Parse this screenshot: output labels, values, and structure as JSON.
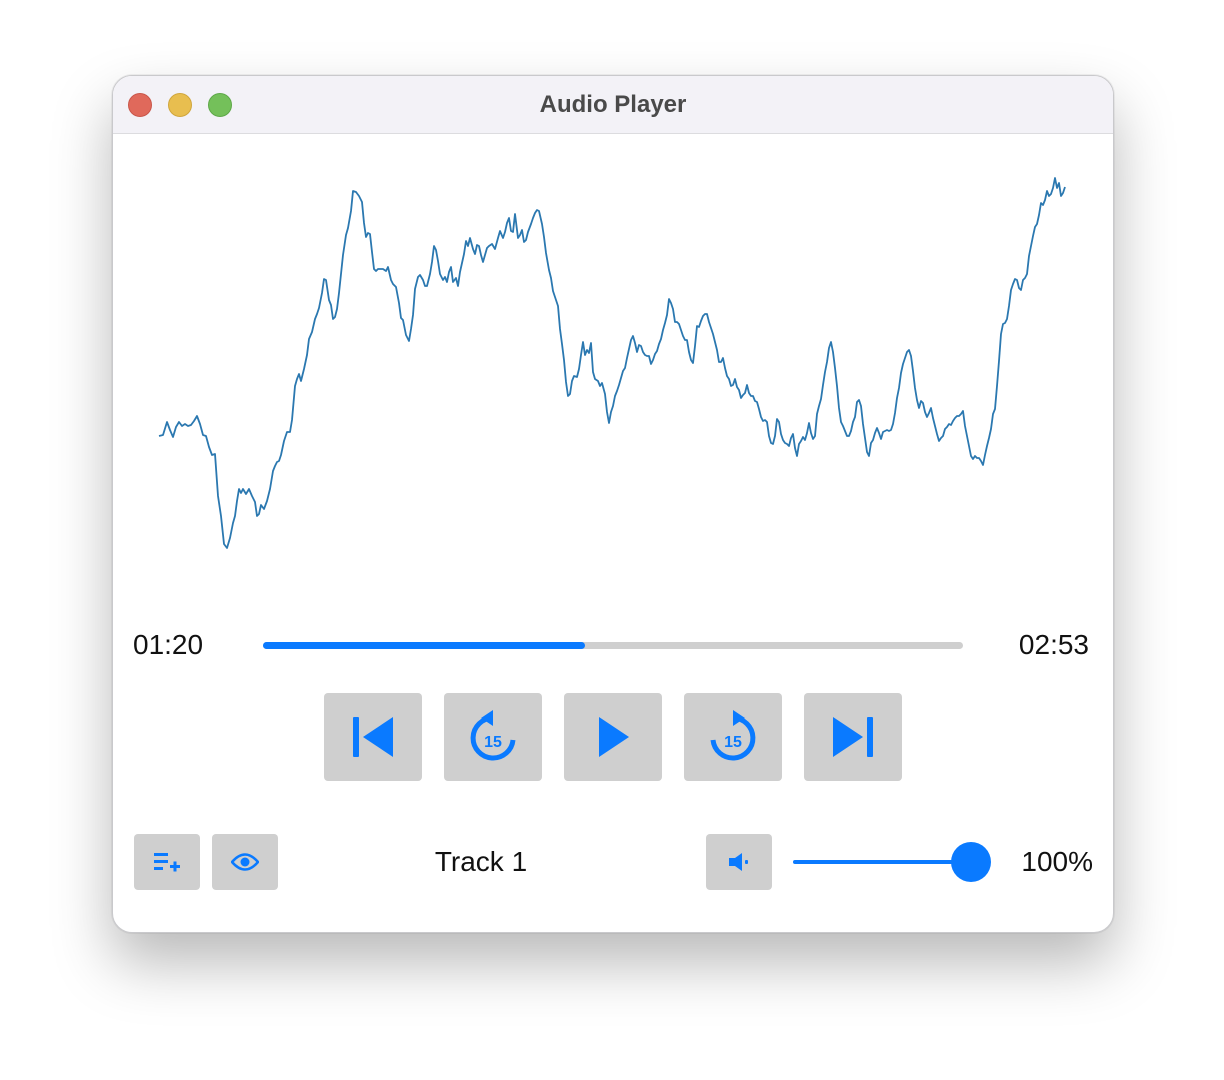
{
  "window": {
    "title": "Audio Player"
  },
  "player": {
    "elapsed": "01:20",
    "total": "02:53",
    "progress_fraction": 0.46,
    "track_name": "Track 1",
    "volume_label": "100%",
    "volume_fraction": 1.0,
    "skip_seconds": "15"
  },
  "buttons": {
    "previous": "skip-previous-icon",
    "rewind": "rewind-15-icon",
    "play": "play-icon",
    "forward": "forward-15-icon",
    "next": "skip-next-icon",
    "playlist_add": "playlist-add-icon",
    "visibility": "eye-icon",
    "mute": "speaker-icon"
  },
  "colors": {
    "accent": "#0a7aff",
    "waveform": "#2b78b0",
    "button_bg": "#cfcfcf"
  }
}
